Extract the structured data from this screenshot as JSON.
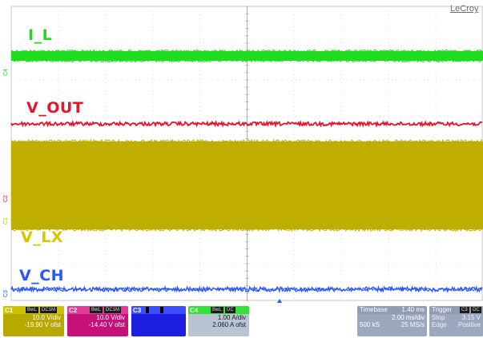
{
  "brand": "LeCroy",
  "traces": {
    "il": {
      "label": "I_L",
      "color": "#1fdc1f",
      "marker": "C4"
    },
    "vout": {
      "label": "V_OUT",
      "color": "#e8142a",
      "marker": "C2"
    },
    "vlx": {
      "label": "V_LX",
      "color": "#bfae00",
      "marker": "C1"
    },
    "vch": {
      "label": "V_CH",
      "color": "#2a55ff",
      "marker": "C3"
    }
  },
  "channels": {
    "c1": {
      "name": "C1",
      "chip1": "BwL",
      "chip2": "DC1M",
      "scale": "10.0 V/div",
      "offset": "-19.90 V ofst"
    },
    "c2": {
      "name": "C2",
      "chip1": "BwL",
      "chip2": "DC1M",
      "scale": "10.0 V/div",
      "offset": "-14.40 V ofst"
    },
    "c3": {
      "name": "C3",
      "chip1": "",
      "chip2": "",
      "scale": "",
      "offset": ""
    },
    "c4": {
      "name": "C4",
      "chip1": "BwL",
      "chip2": "DC",
      "scale": "1.00 A/div",
      "offset": "2.060 A ofst"
    }
  },
  "timebase": {
    "title": "Timebase",
    "delay": "1.40 ms",
    "scale": "2.00 ms/div",
    "samples": "500 kS",
    "rate": "25 MS/s"
  },
  "trigger": {
    "title": "Trigger",
    "source": "C3",
    "coupling": "DC",
    "mode": "Stop",
    "level": "3.15 V",
    "type": "Edge",
    "slope": "Positive"
  }
}
